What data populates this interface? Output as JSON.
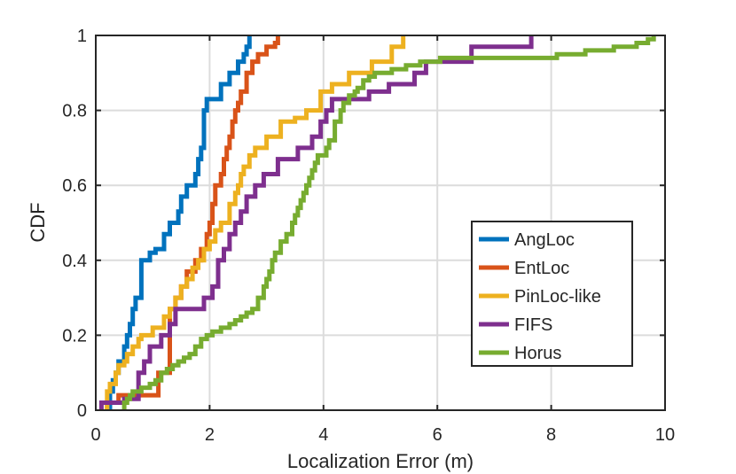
{
  "chart_data": {
    "type": "line",
    "title": "",
    "xlabel": "Localization Error (m)",
    "ylabel": "CDF",
    "xlim": [
      0,
      10
    ],
    "ylim": [
      0,
      1
    ],
    "xticks": [
      "0",
      "2",
      "4",
      "6",
      "8",
      "10"
    ],
    "yticks": [
      "0",
      "0.2",
      "0.4",
      "0.6",
      "0.8",
      "1"
    ],
    "grid": true,
    "legend_position": "lower-right",
    "series": [
      {
        "name": "AngLoc",
        "color": "#0072BD",
        "x": [
          0.25,
          0.3,
          0.35,
          0.4,
          0.5,
          0.55,
          0.6,
          0.65,
          0.7,
          0.8,
          0.95,
          1.05,
          1.2,
          1.3,
          1.45,
          1.5,
          1.6,
          1.75,
          1.8,
          1.85,
          1.9,
          1.95,
          2.1,
          2.2,
          2.35,
          2.5,
          2.6,
          2.65,
          2.7
        ],
        "y": [
          0.05,
          0.08,
          0.1,
          0.13,
          0.17,
          0.2,
          0.23,
          0.27,
          0.3,
          0.4,
          0.42,
          0.43,
          0.47,
          0.5,
          0.53,
          0.57,
          0.6,
          0.63,
          0.67,
          0.7,
          0.8,
          0.83,
          0.83,
          0.87,
          0.9,
          0.93,
          0.95,
          0.97,
          1.0
        ]
      },
      {
        "name": "EntLoc",
        "color": "#D95319",
        "x": [
          0.2,
          0.4,
          1.1,
          1.3,
          1.4,
          1.5,
          1.6,
          1.75,
          1.85,
          1.95,
          2.0,
          2.05,
          2.1,
          2.2,
          2.25,
          2.3,
          2.35,
          2.4,
          2.45,
          2.5,
          2.55,
          2.65,
          2.75,
          2.85,
          3.0,
          3.15,
          3.2
        ],
        "y": [
          0.02,
          0.04,
          0.1,
          0.27,
          0.3,
          0.33,
          0.37,
          0.4,
          0.43,
          0.47,
          0.5,
          0.55,
          0.6,
          0.63,
          0.67,
          0.7,
          0.73,
          0.77,
          0.8,
          0.82,
          0.85,
          0.9,
          0.93,
          0.95,
          0.97,
          0.98,
          1.0
        ]
      },
      {
        "name": "PinLoc-like",
        "color": "#EDB120",
        "x": [
          0.2,
          0.25,
          0.35,
          0.4,
          0.5,
          0.55,
          0.65,
          0.75,
          0.8,
          1.0,
          1.2,
          1.3,
          1.4,
          1.5,
          1.6,
          1.7,
          1.8,
          1.9,
          2.0,
          2.1,
          2.2,
          2.35,
          2.45,
          2.5,
          2.55,
          2.6,
          2.7,
          2.8,
          3.0,
          3.25,
          3.5,
          3.7,
          3.95,
          4.15,
          4.45,
          4.85,
          5.2,
          5.4
        ],
        "y": [
          0.05,
          0.07,
          0.1,
          0.12,
          0.13,
          0.15,
          0.17,
          0.19,
          0.2,
          0.22,
          0.25,
          0.27,
          0.3,
          0.33,
          0.35,
          0.38,
          0.4,
          0.43,
          0.45,
          0.48,
          0.5,
          0.55,
          0.58,
          0.6,
          0.63,
          0.65,
          0.68,
          0.7,
          0.73,
          0.77,
          0.78,
          0.8,
          0.85,
          0.87,
          0.9,
          0.93,
          0.97,
          1.0
        ]
      },
      {
        "name": "FIFS",
        "color": "#7E2F8E",
        "x": [
          0.1,
          0.5,
          0.75,
          0.85,
          0.95,
          1.15,
          1.3,
          1.4,
          1.6,
          1.9,
          2.05,
          2.15,
          2.25,
          2.35,
          2.45,
          2.55,
          2.65,
          2.8,
          2.95,
          3.2,
          3.55,
          3.8,
          3.95,
          4.05,
          4.15,
          4.3,
          4.55,
          4.8,
          5.15,
          5.4,
          5.6,
          5.8,
          6.3,
          6.6,
          7.0,
          7.3,
          7.65
        ],
        "y": [
          0.02,
          0.03,
          0.1,
          0.13,
          0.17,
          0.2,
          0.23,
          0.27,
          0.27,
          0.3,
          0.33,
          0.4,
          0.43,
          0.47,
          0.5,
          0.53,
          0.57,
          0.6,
          0.63,
          0.67,
          0.7,
          0.73,
          0.77,
          0.8,
          0.83,
          0.83,
          0.83,
          0.85,
          0.87,
          0.87,
          0.9,
          0.93,
          0.93,
          0.97,
          0.97,
          0.97,
          1.0
        ]
      },
      {
        "name": "Horus",
        "color": "#77AC30",
        "x": [
          0.5,
          0.55,
          0.6,
          0.65,
          0.7,
          0.8,
          0.95,
          1.05,
          1.15,
          1.25,
          1.35,
          1.45,
          1.55,
          1.65,
          1.75,
          1.85,
          1.95,
          2.05,
          2.2,
          2.35,
          2.45,
          2.55,
          2.65,
          2.75,
          2.85,
          2.95,
          3.0,
          3.05,
          3.1,
          3.15,
          3.25,
          3.35,
          3.45,
          3.5,
          3.55,
          3.6,
          3.65,
          3.7,
          3.75,
          3.8,
          3.85,
          3.9,
          3.95,
          4.0,
          4.05,
          4.1,
          4.2,
          4.3,
          4.35,
          4.45,
          4.55,
          4.6,
          4.7,
          4.8,
          4.9,
          5.05,
          5.2,
          5.45,
          5.7,
          6.05,
          6.6,
          7.1,
          7.6,
          8.1,
          8.6,
          9.1,
          9.5,
          9.7,
          9.8
        ],
        "y": [
          0.02,
          0.03,
          0.04,
          0.05,
          0.05,
          0.06,
          0.07,
          0.08,
          0.1,
          0.11,
          0.12,
          0.13,
          0.14,
          0.15,
          0.17,
          0.19,
          0.2,
          0.21,
          0.22,
          0.23,
          0.24,
          0.25,
          0.26,
          0.27,
          0.3,
          0.33,
          0.35,
          0.37,
          0.4,
          0.42,
          0.45,
          0.47,
          0.5,
          0.52,
          0.54,
          0.56,
          0.58,
          0.6,
          0.62,
          0.64,
          0.66,
          0.68,
          0.68,
          0.68,
          0.7,
          0.72,
          0.77,
          0.8,
          0.82,
          0.84,
          0.85,
          0.86,
          0.88,
          0.89,
          0.9,
          0.9,
          0.91,
          0.92,
          0.93,
          0.94,
          0.94,
          0.94,
          0.94,
          0.95,
          0.96,
          0.97,
          0.98,
          0.99,
          1.0
        ]
      }
    ]
  }
}
